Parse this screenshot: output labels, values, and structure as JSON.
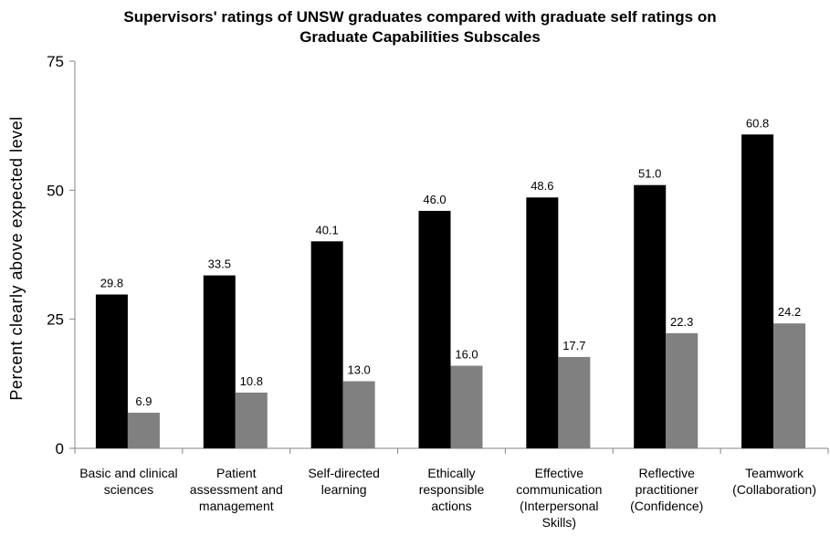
{
  "chart_data": {
    "type": "bar",
    "title": "Supervisors' ratings of UNSW graduates compared with graduate self ratings on Graduate Capabilities Subscales",
    "title_lines": [
      "Supervisors' ratings of UNSW graduates compared with graduate self ratings on",
      "Graduate Capabilities Subscales"
    ],
    "xlabel": "",
    "ylabel": "Percent  clearly  above  expected  level",
    "ylim": [
      0,
      75
    ],
    "yticks": [
      0,
      25,
      50,
      75
    ],
    "categories": [
      [
        "Basic and clinical",
        "sciences"
      ],
      [
        "Patient",
        "assessment and",
        "management"
      ],
      [
        "Self-directed",
        "learning"
      ],
      [
        "Ethically",
        "responsible",
        "actions"
      ],
      [
        "Effective",
        "communication",
        "(Interpersonal",
        "Skills)"
      ],
      [
        "Reflective",
        "practitioner",
        "(Confidence)"
      ],
      [
        "Teamwork",
        "(Collaboration)"
      ]
    ],
    "series": [
      {
        "values": [
          29.8,
          33.5,
          40.1,
          46.0,
          48.6,
          51.0,
          60.8
        ],
        "labels": [
          "29.8",
          "33.5",
          "40.1",
          "46.0",
          "48.6",
          "51.0",
          "60.8"
        ],
        "color": "#000000"
      },
      {
        "values": [
          6.9,
          10.8,
          13.0,
          16.0,
          17.7,
          22.3,
          24.2
        ],
        "labels": [
          "6.9",
          "10.8",
          "13.0",
          "16.0",
          "17.7",
          "22.3",
          "24.2"
        ],
        "color": "#808080"
      }
    ],
    "grid": false,
    "legend": "none",
    "axis_color": "#868686"
  }
}
